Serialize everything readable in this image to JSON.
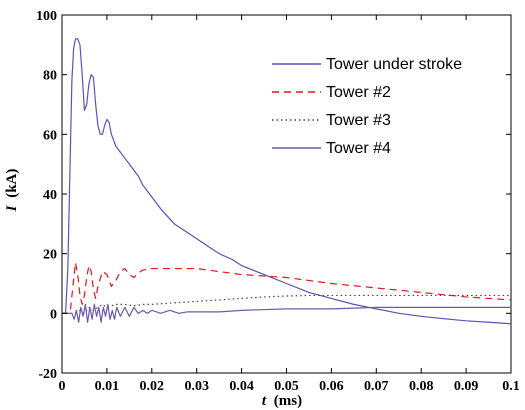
{
  "chart_data": {
    "type": "line",
    "title": "",
    "xlabel_var": "t",
    "xlabel_unit": "(ms)",
    "ylabel_var": "I",
    "ylabel_unit": "(kA)",
    "xlim": [
      0,
      0.1
    ],
    "ylim": [
      -20,
      100
    ],
    "xticks": [
      "0",
      "0.01",
      "0.02",
      "0.03",
      "0.04",
      "0.05",
      "0.06",
      "0.07",
      "0.08",
      "0.09",
      "0.1"
    ],
    "yticks": [
      "-20",
      "0",
      "20",
      "40",
      "60",
      "80",
      "100"
    ],
    "grid": false,
    "legend_position": "top-right",
    "series": [
      {
        "name": "Tower under stroke",
        "color": "#5a55b5",
        "dash": "solid",
        "x": [
          0,
          0.0008,
          0.0013,
          0.0018,
          0.0022,
          0.0026,
          0.003,
          0.0035,
          0.004,
          0.0045,
          0.005,
          0.0055,
          0.006,
          0.0065,
          0.007,
          0.0075,
          0.008,
          0.0085,
          0.009,
          0.0095,
          0.01,
          0.0105,
          0.011,
          0.0115,
          0.012,
          0.013,
          0.014,
          0.015,
          0.016,
          0.017,
          0.018,
          0.019,
          0.02,
          0.022,
          0.025,
          0.028,
          0.03,
          0.033,
          0.035,
          0.038,
          0.04,
          0.045,
          0.05,
          0.055,
          0.06,
          0.065,
          0.07,
          0.075,
          0.08,
          0.085,
          0.09,
          0.095,
          0.1
        ],
        "y": [
          0,
          0,
          15,
          50,
          78,
          89,
          92,
          92,
          90,
          80,
          68,
          70,
          77,
          80,
          79,
          70,
          63,
          60,
          60,
          63,
          65,
          64,
          60,
          58,
          56,
          54,
          52,
          50,
          48,
          46,
          43,
          41,
          39,
          35,
          30,
          27,
          25,
          22,
          20,
          18,
          16,
          13,
          10,
          7,
          5,
          3,
          1.5,
          0,
          -1,
          -1.8,
          -2.5,
          -3,
          -3.5
        ]
      },
      {
        "name": "Tower #2",
        "color": "#e8141c",
        "dash": "7,5",
        "x": [
          0,
          0.0018,
          0.0025,
          0.003,
          0.0035,
          0.004,
          0.0045,
          0.005,
          0.0055,
          0.006,
          0.0065,
          0.007,
          0.0075,
          0.008,
          0.009,
          0.01,
          0.011,
          0.012,
          0.013,
          0.014,
          0.015,
          0.016,
          0.017,
          0.018,
          0.02,
          0.022,
          0.025,
          0.03,
          0.035,
          0.04,
          0.05,
          0.06,
          0.07,
          0.08,
          0.09,
          0.1
        ],
        "y": [
          0,
          0,
          10,
          17,
          13,
          6,
          3,
          6,
          12,
          16,
          14,
          8,
          5,
          9,
          14,
          13,
          9,
          11,
          14,
          15,
          13,
          12,
          13.5,
          14.5,
          15,
          15,
          15,
          15,
          14,
          13,
          12,
          10,
          8.5,
          7,
          5.5,
          4.5
        ]
      },
      {
        "name": "Tower #3",
        "color": "#444444",
        "dash": "1.5,3",
        "x": [
          0,
          0.003,
          0.004,
          0.005,
          0.006,
          0.007,
          0.008,
          0.009,
          0.01,
          0.012,
          0.014,
          0.016,
          0.018,
          0.02,
          0.025,
          0.03,
          0.035,
          0.04,
          0.045,
          0.05,
          0.055,
          0.06,
          0.07,
          0.08,
          0.09,
          0.1
        ],
        "y": [
          0,
          0,
          1,
          0,
          2,
          1,
          2,
          3,
          2,
          3,
          3,
          2.5,
          3,
          3,
          3.5,
          4,
          4.5,
          5,
          5.5,
          5.8,
          6,
          6,
          6,
          6,
          6,
          6
        ]
      },
      {
        "name": "Tower #4",
        "color": "#6b5ab0",
        "dash": "solid",
        "x": [
          0,
          0.0022,
          0.0027,
          0.0032,
          0.0037,
          0.0042,
          0.0047,
          0.0052,
          0.0057,
          0.0062,
          0.0067,
          0.0072,
          0.0077,
          0.0082,
          0.0087,
          0.0092,
          0.0097,
          0.0102,
          0.0107,
          0.0112,
          0.0117,
          0.0122,
          0.013,
          0.014,
          0.015,
          0.016,
          0.017,
          0.018,
          0.019,
          0.02,
          0.022,
          0.024,
          0.026,
          0.028,
          0.03,
          0.035,
          0.04,
          0.05,
          0.06,
          0.07,
          0.08,
          0.09,
          0.1
        ],
        "y": [
          0,
          0,
          -2,
          1,
          -3,
          2,
          -1,
          3,
          -3,
          2,
          -2,
          3,
          -1,
          2,
          -3,
          2,
          -1,
          3,
          -2,
          1,
          -2,
          2,
          -1,
          2,
          -1,
          2,
          0,
          1,
          0,
          1,
          0,
          1,
          0,
          0.5,
          0.5,
          0.5,
          1,
          1.5,
          1.5,
          2,
          2,
          2,
          2
        ]
      }
    ]
  }
}
